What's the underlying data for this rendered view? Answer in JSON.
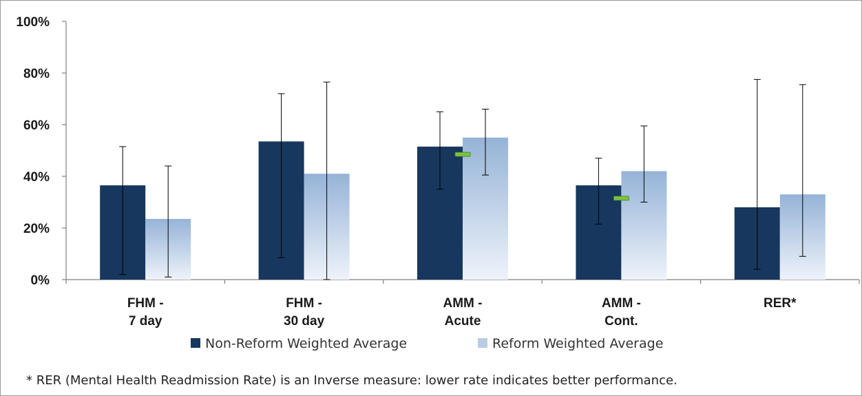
{
  "chart_data": {
    "type": "bar",
    "categories": [
      [
        "FHM -",
        "7 day"
      ],
      [
        "FHM -",
        "30 day"
      ],
      [
        "AMM -",
        "Acute"
      ],
      [
        "AMM -",
        "Cont."
      ],
      [
        "RER*"
      ]
    ],
    "y_ticks": [
      "0%",
      "20%",
      "40%",
      "60%",
      "80%",
      "100%"
    ],
    "ylim": [
      0,
      100
    ],
    "series": [
      {
        "name": "Non-Reform Weighted Average",
        "color": "#17375e",
        "values": [
          36.5,
          53.5,
          51.5,
          36.5,
          28
        ],
        "err_low": [
          2,
          8.5,
          35,
          21.5,
          4
        ],
        "err_high": [
          51.5,
          72,
          65,
          47,
          77.5
        ]
      },
      {
        "name": "Reform Weighted Average",
        "color": "#95b3d7",
        "values": [
          23.5,
          41,
          55,
          42,
          33
        ],
        "err_low": [
          1,
          0,
          40.5,
          30,
          9
        ],
        "err_high": [
          44,
          76.5,
          66,
          59.5,
          75.5
        ]
      }
    ],
    "markers": [
      {
        "category_index": 2,
        "value": 48.5,
        "color": "#7cc242"
      },
      {
        "category_index": 3,
        "value": 31.5,
        "color": "#7cc242"
      }
    ],
    "legend_position": "bottom",
    "footnote": "* RER (Mental Health Readmission Rate) is an Inverse measure: lower rate indicates better performance."
  }
}
